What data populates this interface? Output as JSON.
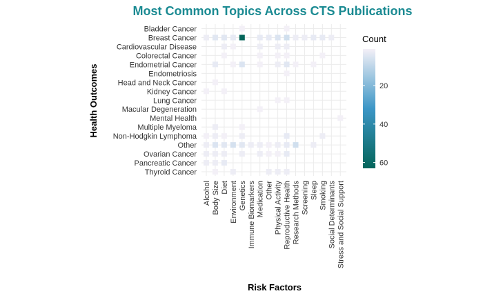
{
  "chart_data": {
    "type": "heatmap",
    "title": "Most Common Topics Across CTS Publications",
    "xlabel": "Risk Factors",
    "ylabel": "Health Outcomes",
    "y_categories": [
      "Bladder Cancer",
      "Breast Cancer",
      "Cardiovascular Disease",
      "Colorectal Cancer",
      "Endometrial Cancer",
      "Endometriosis",
      "Head and Neck Cancer",
      "Kidney Cancer",
      "Lung Cancer",
      "Macular Degeneration",
      "Mental Health",
      "Multiple Myeloma",
      "Non-Hodgkin Lymphoma",
      "Other",
      "Ovarian Cancer",
      "Pancreatic Cancer",
      "Thyroid Cancer"
    ],
    "x_categories": [
      "Alcohol",
      "Body Size",
      "Diet",
      "Environment",
      "Genetics",
      "Immune Biomarkers",
      "Medication",
      "Other",
      "Physical Activity",
      "Reproductive Health",
      "Research Methods",
      "Screening",
      "Sleep",
      "Smoking",
      "Social Determinants",
      "Stress and Social Support"
    ],
    "cells": [
      [
        "Bladder Cancer",
        "Genetics",
        1
      ],
      [
        "Bladder Cancer",
        "Reproductive Health",
        1
      ],
      [
        "Breast Cancer",
        "Alcohol",
        2
      ],
      [
        "Breast Cancer",
        "Body Size",
        4
      ],
      [
        "Breast Cancer",
        "Diet",
        4
      ],
      [
        "Breast Cancer",
        "Environment",
        3
      ],
      [
        "Breast Cancer",
        "Genetics",
        63
      ],
      [
        "Breast Cancer",
        "Medication",
        3
      ],
      [
        "Breast Cancer",
        "Other",
        3
      ],
      [
        "Breast Cancer",
        "Physical Activity",
        5
      ],
      [
        "Breast Cancer",
        "Reproductive Health",
        7
      ],
      [
        "Breast Cancer",
        "Research Methods",
        2
      ],
      [
        "Breast Cancer",
        "Screening",
        2
      ],
      [
        "Breast Cancer",
        "Sleep",
        3
      ],
      [
        "Breast Cancer",
        "Smoking",
        3
      ],
      [
        "Breast Cancer",
        "Social Determinants",
        2
      ],
      [
        "Cardiovascular Disease",
        "Diet",
        2
      ],
      [
        "Cardiovascular Disease",
        "Environment",
        1
      ],
      [
        "Cardiovascular Disease",
        "Medication",
        2
      ],
      [
        "Cardiovascular Disease",
        "Physical Activity",
        2
      ],
      [
        "Cardiovascular Disease",
        "Reproductive Health",
        2
      ],
      [
        "Colorectal Cancer",
        "Diet",
        1
      ],
      [
        "Colorectal Cancer",
        "Medication",
        1
      ],
      [
        "Colorectal Cancer",
        "Physical Activity",
        1
      ],
      [
        "Colorectal Cancer",
        "Reproductive Health",
        1
      ],
      [
        "Colorectal Cancer",
        "Smoking",
        1
      ],
      [
        "Endometrial Cancer",
        "Body Size",
        3
      ],
      [
        "Endometrial Cancer",
        "Environment",
        1
      ],
      [
        "Endometrial Cancer",
        "Genetics",
        5
      ],
      [
        "Endometrial Cancer",
        "Medication",
        1
      ],
      [
        "Endometrial Cancer",
        "Physical Activity",
        2
      ],
      [
        "Endometrial Cancer",
        "Reproductive Health",
        4
      ],
      [
        "Endometrial Cancer",
        "Research Methods",
        1
      ],
      [
        "Endometrial Cancer",
        "Sleep",
        1
      ],
      [
        "Endometriosis",
        "Reproductive Health",
        1
      ],
      [
        "Head and Neck Cancer",
        "Body Size",
        1
      ],
      [
        "Kidney Cancer",
        "Alcohol",
        1
      ],
      [
        "Kidney Cancer",
        "Diet",
        1
      ],
      [
        "Lung Cancer",
        "Physical Activity",
        1
      ],
      [
        "Lung Cancer",
        "Reproductive Health",
        1
      ],
      [
        "Macular Degeneration",
        "Medication",
        1
      ],
      [
        "Mental Health",
        "Stress and Social Support",
        1
      ],
      [
        "Multiple Myeloma",
        "Body Size",
        2
      ],
      [
        "Multiple Myeloma",
        "Genetics",
        1
      ],
      [
        "Non-Hodgkin Lymphoma",
        "Alcohol",
        1
      ],
      [
        "Non-Hodgkin Lymphoma",
        "Body Size",
        2
      ],
      [
        "Non-Hodgkin Lymphoma",
        "Diet",
        1
      ],
      [
        "Non-Hodgkin Lymphoma",
        "Genetics",
        2
      ],
      [
        "Non-Hodgkin Lymphoma",
        "Reproductive Health",
        3
      ],
      [
        "Non-Hodgkin Lymphoma",
        "Smoking",
        2
      ],
      [
        "Other",
        "Alcohol",
        2
      ],
      [
        "Other",
        "Body Size",
        5
      ],
      [
        "Other",
        "Diet",
        4
      ],
      [
        "Other",
        "Environment",
        6
      ],
      [
        "Other",
        "Genetics",
        4
      ],
      [
        "Other",
        "Immune Biomarkers",
        2
      ],
      [
        "Other",
        "Medication",
        2
      ],
      [
        "Other",
        "Other",
        1
      ],
      [
        "Other",
        "Physical Activity",
        2
      ],
      [
        "Other",
        "Reproductive Health",
        3
      ],
      [
        "Other",
        "Research Methods",
        7
      ],
      [
        "Other",
        "Sleep",
        2
      ],
      [
        "Ovarian Cancer",
        "Alcohol",
        2
      ],
      [
        "Ovarian Cancer",
        "Body Size",
        2
      ],
      [
        "Ovarian Cancer",
        "Diet",
        2
      ],
      [
        "Ovarian Cancer",
        "Genetics",
        2
      ],
      [
        "Ovarian Cancer",
        "Medication",
        2
      ],
      [
        "Ovarian Cancer",
        "Other",
        1
      ],
      [
        "Ovarian Cancer",
        "Physical Activity",
        1
      ],
      [
        "Ovarian Cancer",
        "Reproductive Health",
        3
      ],
      [
        "Pancreatic Cancer",
        "Alcohol",
        2
      ],
      [
        "Pancreatic Cancer",
        "Body Size",
        2
      ],
      [
        "Pancreatic Cancer",
        "Diet",
        3
      ],
      [
        "Thyroid Cancer",
        "Body Size",
        1
      ],
      [
        "Thyroid Cancer",
        "Environment",
        2
      ],
      [
        "Thyroid Cancer",
        "Physical Activity",
        2
      ],
      [
        "Thyroid Cancer",
        "Reproductive Health",
        2
      ],
      [
        "Thyroid Cancer",
        "Other",
        2
      ]
    ],
    "legend": {
      "title": "Count",
      "ticks": [
        20,
        40,
        60
      ],
      "range": [
        1,
        63
      ],
      "colors": [
        "#f3f0f7",
        "#3c96c6",
        "#04655a"
      ],
      "placement": "right"
    },
    "grid": true,
    "colors": {
      "title": "#1a8a92",
      "grid": "#ebebeb"
    }
  }
}
